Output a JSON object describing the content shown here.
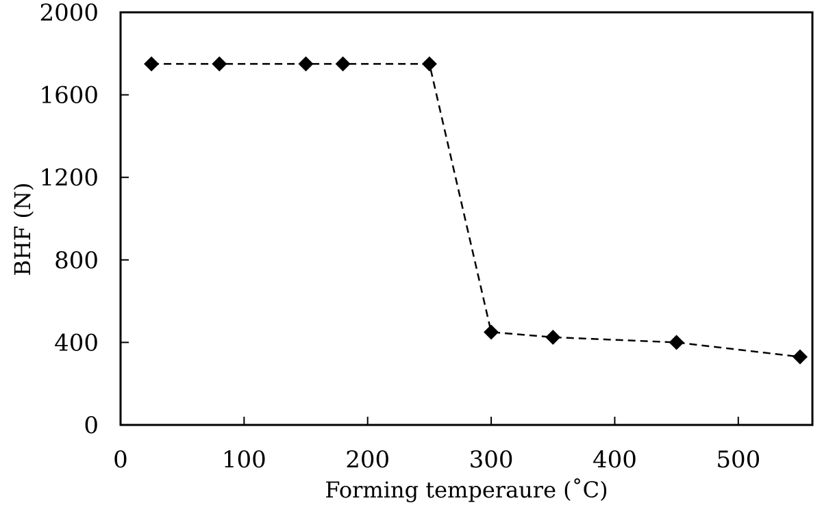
{
  "chart_data": {
    "type": "line",
    "title": "",
    "xlabel": "Forming temperaure (˚C)",
    "ylabel": "BHF (N)",
    "xlim": [
      0,
      560
    ],
    "ylim": [
      0,
      2000
    ],
    "xticks": [
      0,
      100,
      200,
      300,
      400,
      500
    ],
    "yticks": [
      0,
      400,
      800,
      1200,
      1600,
      2000
    ],
    "grid": false,
    "legend": "none",
    "series": [
      {
        "x": [
          25,
          80,
          150,
          180,
          250,
          300,
          350,
          450,
          550
        ],
        "y": [
          1750,
          1750,
          1750,
          1750,
          1750,
          450,
          425,
          400,
          330
        ],
        "marker": "diamond",
        "line_style": "dashed",
        "color": "#000000"
      }
    ]
  }
}
